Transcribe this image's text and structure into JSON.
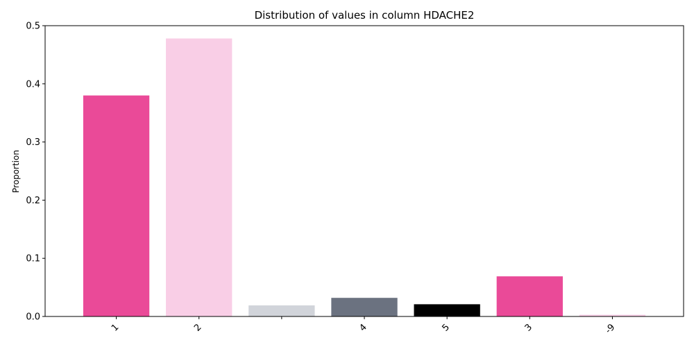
{
  "chart_data": {
    "type": "bar",
    "title": "Distribution of values in column HDACHE2",
    "xlabel": "",
    "ylabel": "Proportion",
    "categories": [
      "1",
      "2",
      "",
      "4",
      "5",
      "3",
      "-9"
    ],
    "values": [
      0.38,
      0.478,
      0.019,
      0.032,
      0.021,
      0.069,
      0.003
    ],
    "colors": [
      "#ea4a98",
      "#f9cee6",
      "#d1d4da",
      "#6b7280",
      "#000000",
      "#ea4a98",
      "#f9cee6"
    ],
    "ylim": [
      0,
      0.5
    ],
    "yticks": [
      0.0,
      0.1,
      0.2,
      0.3,
      0.4,
      0.5
    ],
    "ytick_labels": [
      "0.0",
      "0.1",
      "0.2",
      "0.3",
      "0.4",
      "0.5"
    ],
    "grid": false,
    "legend": "none"
  }
}
